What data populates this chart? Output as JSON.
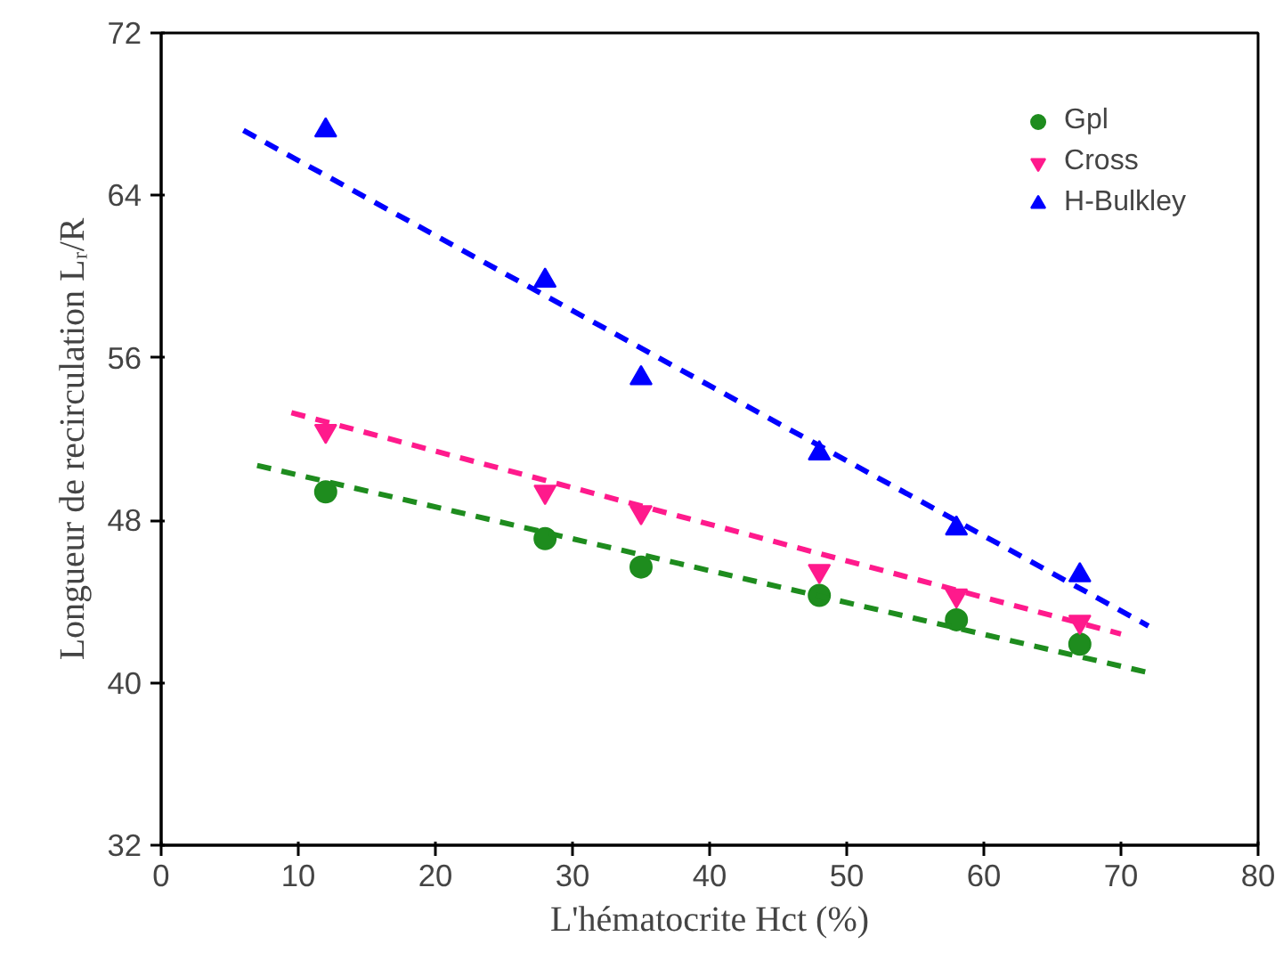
{
  "chart_data": {
    "type": "scatter",
    "xlabel": "L'hématocrite Hct (%)",
    "ylabel": "Longueur de recirculation Lᵣ/R",
    "xlim": [
      0,
      80
    ],
    "xticks": [
      0,
      10,
      20,
      30,
      40,
      50,
      60,
      70,
      80
    ],
    "ylim": [
      32,
      72
    ],
    "yticks": [
      32,
      40,
      48,
      56,
      64,
      72
    ],
    "grid": false,
    "legend": "top right",
    "series": [
      {
        "name": "Gpl",
        "color": "#1e8c1e",
        "marker": "circle",
        "x": [
          12,
          28,
          35,
          48,
          58,
          67
        ],
        "values": [
          49.4,
          47.1,
          45.7,
          44.3,
          43.1,
          41.9
        ]
      },
      {
        "name": "Cross",
        "color": "#ff1a8c",
        "x": [
          12,
          28,
          35,
          48,
          58,
          67
        ],
        "values": [
          52.4,
          49.4,
          48.4,
          45.5,
          44.3,
          43.0
        ]
      },
      {
        "name": "H-Bulkley",
        "color": "#0000ff",
        "marker": "triangle",
        "x": [
          12,
          28,
          35,
          48,
          58,
          67
        ],
        "values": [
          67.2,
          59.8,
          55.0,
          51.3,
          47.6,
          45.3
        ]
      },
      {
        "type": "line",
        "color": "#1e8c1e",
        "line_style": "dashed",
        "x": [
          7,
          72
        ],
        "values": [
          50.7,
          40.5
        ]
      },
      {
        "type": "line",
        "color": "#ff1a8c",
        "line_style": "dashed",
        "x": [
          9.5,
          70
        ],
        "values": [
          53.3,
          42.4
        ]
      },
      {
        "type": "line",
        "color": "#0000ff",
        "line_style": "dashed",
        "x": [
          6,
          72
        ],
        "values": [
          67.2,
          42.8
        ]
      }
    ]
  }
}
